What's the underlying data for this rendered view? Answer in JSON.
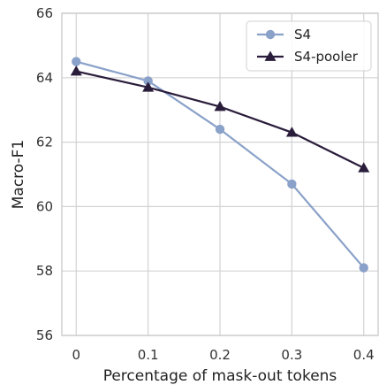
{
  "chart_data": {
    "type": "line",
    "title": "",
    "xlabel": "Percentage of mask-out tokens",
    "ylabel": "Macro-F1",
    "x": [
      0,
      0.1,
      0.2,
      0.3,
      0.4
    ],
    "x_tick_labels": [
      "0",
      "0.1",
      "0.2",
      "0.3",
      "0.4"
    ],
    "xlim": [
      -0.02,
      0.42
    ],
    "ylim": [
      56,
      66
    ],
    "y_ticks": [
      56,
      58,
      60,
      62,
      64,
      66
    ],
    "y_tick_labels": [
      "56",
      "58",
      "60",
      "62",
      "64",
      "66"
    ],
    "grid": true,
    "legend_position": "top-right",
    "series": [
      {
        "name": "S4",
        "values": [
          64.5,
          63.9,
          62.4,
          60.7,
          58.1
        ],
        "color": "#8aa1c9",
        "marker": "circle"
      },
      {
        "name": "S4-pooler",
        "values": [
          64.2,
          63.7,
          63.1,
          62.3,
          61.2
        ],
        "color": "#2a1d3b",
        "marker": "triangle"
      }
    ]
  }
}
